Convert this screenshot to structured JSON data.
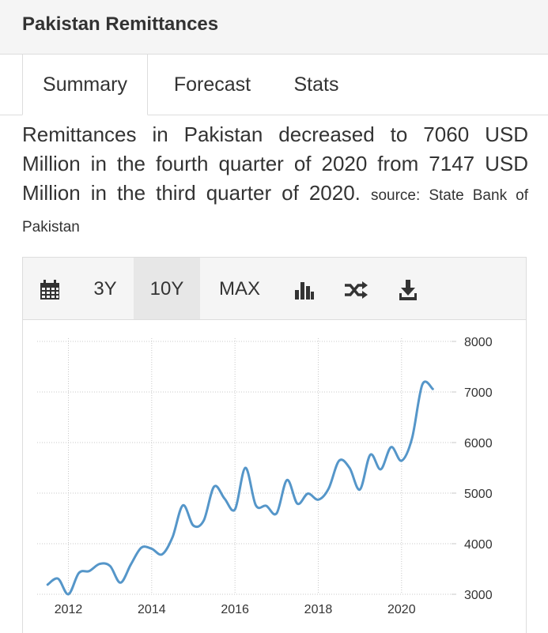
{
  "header": {
    "title": "Pakistan Remittances"
  },
  "tabs": [
    {
      "label": "Summary"
    },
    {
      "label": "Forecast"
    },
    {
      "label": "Stats"
    }
  ],
  "description": {
    "text": "Remittances in Pakistan decreased to 7060 USD Million in the fourth quarter of 2020 from 7147 USD Million in the third quarter of 2020.",
    "source": "source: State Bank of Pakistan"
  },
  "toolbar": {
    "calendar_icon": "calendar-icon",
    "btn_3y": "3Y",
    "btn_10y": "10Y",
    "btn_max": "MAX",
    "bar_icon": "bar-chart-icon",
    "shuffle_icon": "shuffle-icon",
    "download_icon": "download-icon"
  },
  "chart_data": {
    "type": "line",
    "title": "",
    "xlabel": "",
    "ylabel": "",
    "line_color": "#5596c9",
    "grid": true,
    "x_ticks": [
      "2012",
      "2014",
      "2016",
      "2018",
      "2020"
    ],
    "y_ticks": [
      3000,
      4000,
      5000,
      6000,
      7000,
      8000
    ],
    "ylim": [
      3000,
      8000
    ],
    "xlim": [
      2011.25,
      2021.2
    ],
    "x": [
      2011.5,
      2011.75,
      2012.0,
      2012.25,
      2012.5,
      2012.75,
      2013.0,
      2013.25,
      2013.5,
      2013.75,
      2014.0,
      2014.25,
      2014.5,
      2014.75,
      2015.0,
      2015.25,
      2015.5,
      2015.75,
      2016.0,
      2016.25,
      2016.5,
      2016.75,
      2017.0,
      2017.25,
      2017.5,
      2017.75,
      2018.0,
      2018.25,
      2018.5,
      2018.75,
      2019.0,
      2019.25,
      2019.5,
      2019.75,
      2020.0,
      2020.25,
      2020.5,
      2020.75
    ],
    "values": [
      3190,
      3310,
      3000,
      3420,
      3460,
      3600,
      3560,
      3230,
      3590,
      3920,
      3900,
      3790,
      4130,
      4760,
      4360,
      4460,
      5130,
      4890,
      4680,
      5500,
      4760,
      4750,
      4600,
      5260,
      4790,
      4990,
      4870,
      5090,
      5640,
      5500,
      5070,
      5760,
      5470,
      5910,
      5640,
      6080,
      7147,
      7060
    ]
  }
}
